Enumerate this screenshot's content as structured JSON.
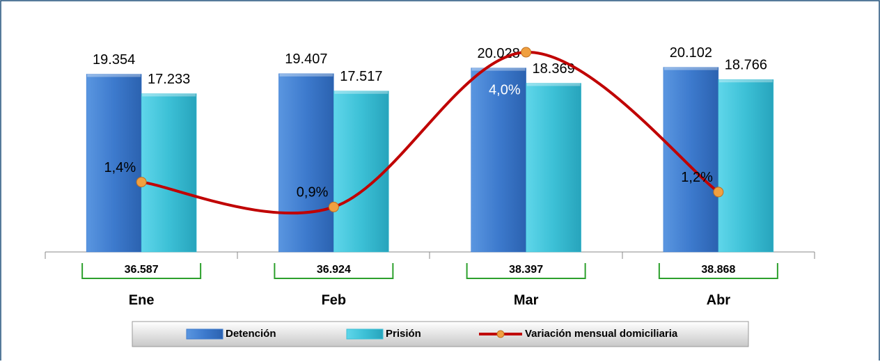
{
  "chart_data": {
    "type": "bar",
    "categories": [
      "Ene",
      "Feb",
      "Mar",
      "Abr"
    ],
    "series": [
      {
        "name": "Detención",
        "color": "#3d7acd",
        "values": [
          19354,
          19407,
          20028,
          20102
        ],
        "value_labels": [
          "19.354",
          "19.407",
          "20.028",
          "20.102"
        ]
      },
      {
        "name": "Prisión",
        "color": "#3cc0d6",
        "values": [
          17233,
          17517,
          18369,
          18766
        ],
        "value_labels": [
          "17.233",
          "17.517",
          "18.369",
          "18.766"
        ]
      },
      {
        "name": "Variación mensual domiciliaria",
        "type": "line",
        "axis": "y2",
        "color": "#c00000",
        "marker_color": "#f0a040",
        "values": [
          1.4,
          0.9,
          4.0,
          1.2
        ],
        "value_labels": [
          "1,4%",
          "0,9%",
          "4,0%",
          "1,2%"
        ]
      }
    ],
    "totals": [
      36587,
      36924,
      38397,
      38868
    ],
    "total_labels": [
      "36.587",
      "36.924",
      "38.397",
      "38.868"
    ],
    "ylim": [
      0,
      25000
    ],
    "y2lim": [
      0,
      4.6
    ],
    "legend": "bottom"
  }
}
